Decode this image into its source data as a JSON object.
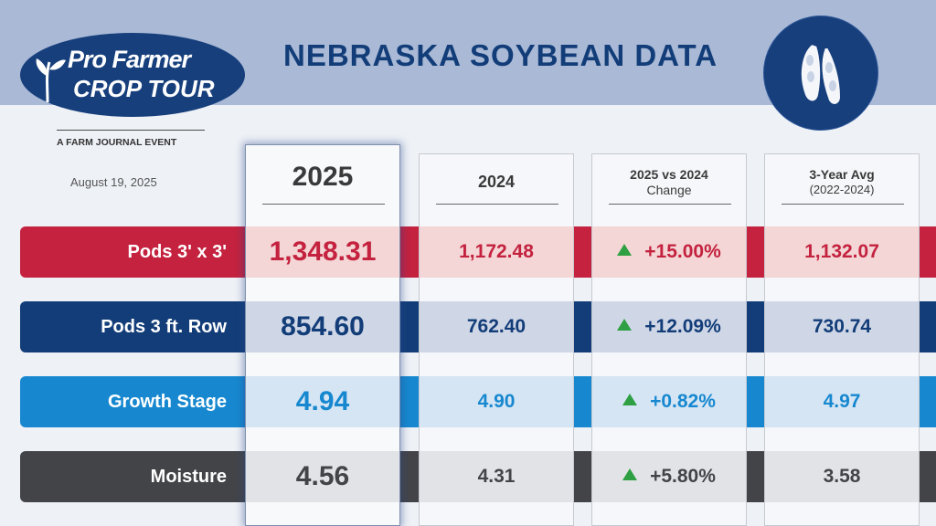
{
  "header": {
    "title": "NEBRASKA SOYBEAN DATA",
    "logo_line1": "Pro Farmer",
    "logo_line2": "CROP TOUR",
    "tagline": "A FARM JOURNAL EVENT",
    "date": "August 19, 2025"
  },
  "columns": {
    "c2025": "2025",
    "c2024": "2024",
    "change_line1": "2025 vs 2024",
    "change_line2": "Change",
    "avg_line1": "3-Year Avg",
    "avg_line2": "(2022-2024)"
  },
  "rows": [
    {
      "label": "Pods 3' x 3'",
      "v2025": "1,348.31",
      "v2024": "1,172.48",
      "change": "+15.00%",
      "avg": "1,132.07",
      "color": "#c4223f",
      "tint": "#f3d6d5",
      "text": "#c4223f"
    },
    {
      "label": "Pods 3 ft. Row",
      "v2025": "854.60",
      "v2024": "762.40",
      "change": "+12.09%",
      "avg": "730.74",
      "color": "#123d78",
      "tint": "#cfd6e6",
      "text": "#123d78"
    },
    {
      "label": "Growth Stage",
      "v2025": "4.94",
      "v2024": "4.90",
      "change": "+0.82%",
      "avg": "4.97",
      "color": "#1788cf",
      "tint": "#d5e5f4",
      "text": "#1788cf"
    },
    {
      "label": "Moisture",
      "v2025": "4.56",
      "v2024": "4.31",
      "change": "+5.80%",
      "avg": "3.58",
      "color": "#434448",
      "tint": "#e2e3e6",
      "text": "#434448"
    }
  ]
}
